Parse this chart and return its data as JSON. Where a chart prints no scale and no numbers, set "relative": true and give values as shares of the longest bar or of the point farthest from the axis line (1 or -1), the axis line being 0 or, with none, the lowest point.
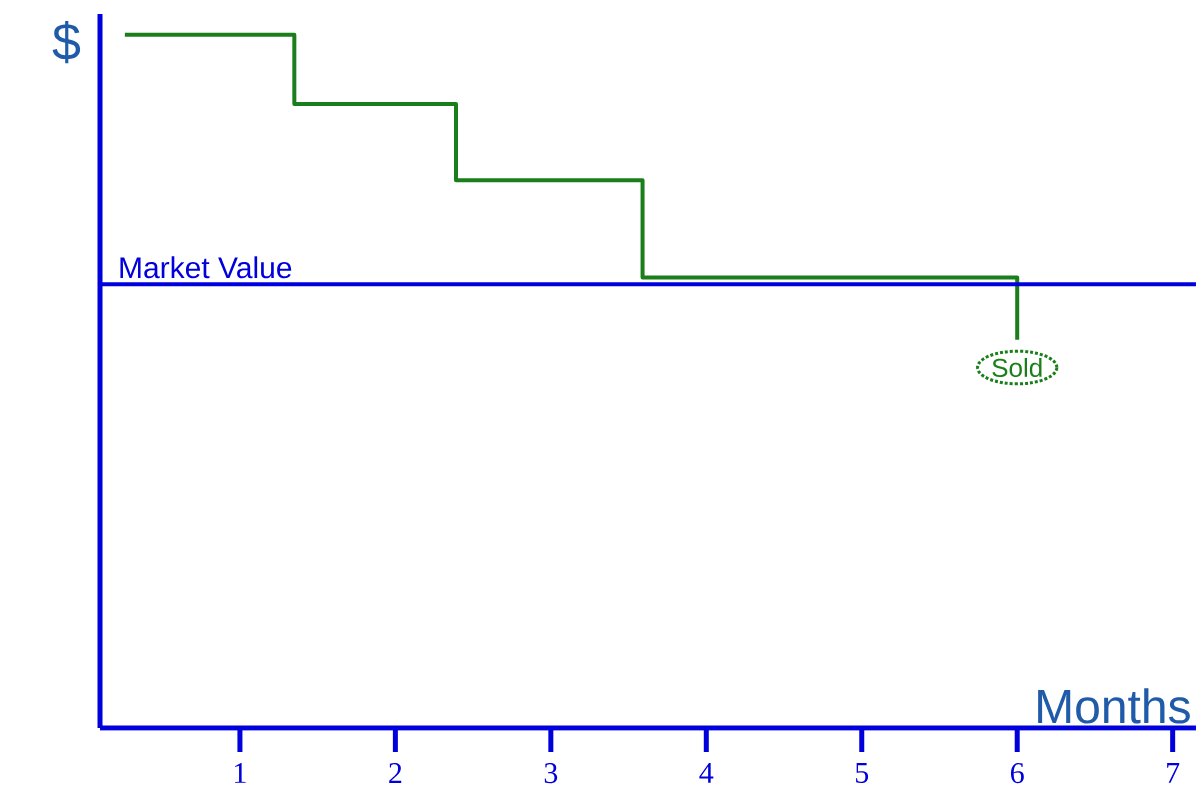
{
  "chart_data": {
    "type": "step",
    "xlabel": "Months",
    "ylabel": "$",
    "relative": true,
    "x": [
      0.26,
      1.35,
      2.39,
      3.59,
      6
    ],
    "values": [
      1,
      0.9,
      0.79,
      0.65,
      0.56
    ],
    "color": "#1a7f1a",
    "xlim": [
      0.1,
      7.15
    ],
    "xticks": [
      1,
      2,
      3,
      4,
      5,
      6,
      7
    ],
    "ref_lines": [
      {
        "axis": "y",
        "value": 0.64,
        "label": "Market Value",
        "color": "#0000dd"
      }
    ],
    "annotations": [
      {
        "text": "Sold",
        "x": 6,
        "y": 0.52
      }
    ]
  }
}
